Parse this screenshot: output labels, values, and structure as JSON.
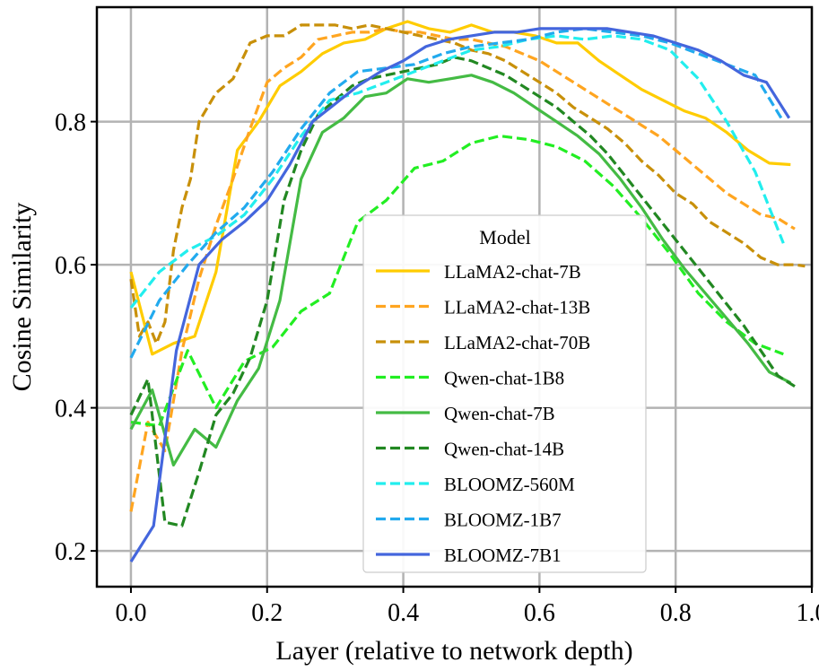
{
  "chart_data": {
    "type": "line",
    "title": "",
    "xlabel": "Layer (relative to network depth)",
    "ylabel": "Cosine Similarity",
    "xlim": [
      -0.05,
      1.0
    ],
    "ylim": [
      0.15,
      0.96
    ],
    "xticks": [
      0.0,
      0.2,
      0.4,
      0.6,
      0.8,
      1.0
    ],
    "xtick_labels": [
      "0.0",
      "0.2",
      "0.4",
      "0.6",
      "0.8",
      "1.0"
    ],
    "yticks": [
      0.2,
      0.4,
      0.6,
      0.8
    ],
    "ytick_labels": [
      "0.2",
      "0.4",
      "0.6",
      "0.8"
    ],
    "grid": true,
    "legend": {
      "title": "Model",
      "placement": "center-right"
    },
    "series": [
      {
        "name": "LLaMA2-chat-7B",
        "color": "#FFCC00",
        "dash": "solid",
        "x": [
          0,
          0.03125,
          0.0625,
          0.09375,
          0.125,
          0.15625,
          0.1875,
          0.21875,
          0.25,
          0.28125,
          0.3125,
          0.34375,
          0.375,
          0.40625,
          0.4375,
          0.46875,
          0.5,
          0.53125,
          0.5625,
          0.59375,
          0.625,
          0.65625,
          0.6875,
          0.71875,
          0.75,
          0.78125,
          0.8125,
          0.84375,
          0.875,
          0.90625,
          0.9375,
          0.96875
        ],
        "y": [
          0.59,
          0.475,
          0.49,
          0.5,
          0.59,
          0.76,
          0.8,
          0.85,
          0.87,
          0.895,
          0.91,
          0.915,
          0.93,
          0.94,
          0.93,
          0.925,
          0.935,
          0.925,
          0.925,
          0.92,
          0.91,
          0.91,
          0.885,
          0.865,
          0.845,
          0.83,
          0.815,
          0.805,
          0.785,
          0.76,
          0.742,
          0.74
        ]
      },
      {
        "name": "LLaMA2-chat-13B",
        "color": "#FFA520",
        "dash": "dashed",
        "x": [
          0,
          0.025,
          0.05,
          0.075,
          0.1,
          0.125,
          0.15,
          0.175,
          0.2,
          0.225,
          0.25,
          0.275,
          0.3,
          0.325,
          0.35,
          0.375,
          0.4,
          0.425,
          0.45,
          0.475,
          0.5,
          0.525,
          0.55,
          0.575,
          0.6,
          0.625,
          0.65,
          0.675,
          0.7,
          0.725,
          0.75,
          0.775,
          0.8,
          0.825,
          0.85,
          0.875,
          0.9,
          0.925,
          0.95,
          0.975
        ],
        "y": [
          0.255,
          0.38,
          0.34,
          0.48,
          0.58,
          0.655,
          0.72,
          0.79,
          0.855,
          0.875,
          0.89,
          0.915,
          0.92,
          0.925,
          0.925,
          0.93,
          0.925,
          0.925,
          0.92,
          0.915,
          0.915,
          0.91,
          0.905,
          0.895,
          0.885,
          0.87,
          0.855,
          0.84,
          0.825,
          0.81,
          0.795,
          0.78,
          0.76,
          0.74,
          0.72,
          0.7,
          0.685,
          0.67,
          0.665,
          0.65
        ]
      },
      {
        "name": "LLaMA2-chat-70B",
        "color": "#C8900A",
        "dash": "dashed",
        "x": [
          0,
          0.0125,
          0.025,
          0.0375,
          0.05,
          0.0625,
          0.075,
          0.0875,
          0.1,
          0.1125,
          0.125,
          0.15,
          0.175,
          0.2,
          0.225,
          0.25,
          0.275,
          0.3,
          0.325,
          0.35,
          0.375,
          0.4,
          0.425,
          0.45,
          0.475,
          0.5,
          0.525,
          0.55,
          0.575,
          0.6,
          0.625,
          0.65,
          0.675,
          0.7,
          0.725,
          0.75,
          0.775,
          0.8,
          0.825,
          0.85,
          0.875,
          0.9,
          0.925,
          0.95,
          0.975,
          0.99
        ],
        "y": [
          0.58,
          0.5,
          0.52,
          0.49,
          0.52,
          0.62,
          0.68,
          0.72,
          0.8,
          0.82,
          0.84,
          0.86,
          0.91,
          0.92,
          0.92,
          0.935,
          0.935,
          0.935,
          0.93,
          0.935,
          0.93,
          0.925,
          0.92,
          0.915,
          0.91,
          0.9,
          0.895,
          0.885,
          0.87,
          0.855,
          0.84,
          0.82,
          0.805,
          0.79,
          0.77,
          0.745,
          0.725,
          0.7,
          0.685,
          0.66,
          0.645,
          0.63,
          0.61,
          0.6,
          0.6,
          0.598
        ]
      },
      {
        "name": "Qwen-chat-1B8",
        "color": "#22EE22",
        "dash": "dashed",
        "x": [
          0,
          0.0417,
          0.0833,
          0.125,
          0.1667,
          0.2083,
          0.25,
          0.2917,
          0.3333,
          0.375,
          0.4167,
          0.4583,
          0.5,
          0.5417,
          0.5833,
          0.625,
          0.6667,
          0.7083,
          0.75,
          0.7917,
          0.8333,
          0.875,
          0.9167,
          0.9583
        ],
        "y": [
          0.38,
          0.375,
          0.48,
          0.4,
          0.465,
          0.485,
          0.535,
          0.56,
          0.66,
          0.69,
          0.735,
          0.745,
          0.77,
          0.78,
          0.775,
          0.765,
          0.745,
          0.71,
          0.665,
          0.615,
          0.56,
          0.52,
          0.49,
          0.475
        ]
      },
      {
        "name": "Qwen-chat-7B",
        "color": "#44BB44",
        "dash": "solid",
        "x": [
          0,
          0.03125,
          0.0625,
          0.09375,
          0.125,
          0.15625,
          0.1875,
          0.21875,
          0.25,
          0.28125,
          0.3125,
          0.34375,
          0.375,
          0.40625,
          0.4375,
          0.46875,
          0.5,
          0.53125,
          0.5625,
          0.59375,
          0.625,
          0.65625,
          0.6875,
          0.71875,
          0.75,
          0.78125,
          0.8125,
          0.84375,
          0.875,
          0.90625,
          0.9375,
          0.96875
        ],
        "y": [
          0.37,
          0.425,
          0.32,
          0.37,
          0.345,
          0.41,
          0.455,
          0.55,
          0.72,
          0.785,
          0.805,
          0.835,
          0.84,
          0.86,
          0.855,
          0.86,
          0.865,
          0.855,
          0.84,
          0.82,
          0.8,
          0.78,
          0.755,
          0.72,
          0.68,
          0.635,
          0.595,
          0.56,
          0.525,
          0.49,
          0.45,
          0.435
        ]
      },
      {
        "name": "Qwen-chat-14B",
        "color": "#228822",
        "dash": "dashed",
        "x": [
          0,
          0.025,
          0.05,
          0.075,
          0.1,
          0.125,
          0.15,
          0.175,
          0.2,
          0.225,
          0.25,
          0.275,
          0.3,
          0.325,
          0.35,
          0.375,
          0.4,
          0.425,
          0.45,
          0.475,
          0.5,
          0.525,
          0.55,
          0.575,
          0.6,
          0.625,
          0.65,
          0.675,
          0.7,
          0.725,
          0.75,
          0.775,
          0.8,
          0.825,
          0.85,
          0.875,
          0.9,
          0.925,
          0.95,
          0.975
        ],
        "y": [
          0.39,
          0.44,
          0.24,
          0.235,
          0.31,
          0.39,
          0.42,
          0.47,
          0.55,
          0.69,
          0.76,
          0.81,
          0.83,
          0.85,
          0.86,
          0.865,
          0.87,
          0.875,
          0.88,
          0.89,
          0.885,
          0.875,
          0.865,
          0.85,
          0.835,
          0.82,
          0.8,
          0.78,
          0.755,
          0.725,
          0.695,
          0.665,
          0.635,
          0.605,
          0.575,
          0.545,
          0.515,
          0.48,
          0.445,
          0.43
        ]
      },
      {
        "name": "BLOOMZ-560M",
        "color": "#22EEEE",
        "dash": "dashed",
        "x": [
          0,
          0.0417,
          0.0833,
          0.125,
          0.1667,
          0.2083,
          0.25,
          0.2917,
          0.3333,
          0.375,
          0.4167,
          0.4583,
          0.5,
          0.5417,
          0.5833,
          0.625,
          0.6667,
          0.7083,
          0.75,
          0.7917,
          0.8333,
          0.875,
          0.9167,
          0.9583
        ],
        "y": [
          0.54,
          0.59,
          0.62,
          0.64,
          0.67,
          0.72,
          0.78,
          0.83,
          0.84,
          0.855,
          0.87,
          0.885,
          0.9,
          0.905,
          0.915,
          0.92,
          0.915,
          0.92,
          0.915,
          0.9,
          0.86,
          0.8,
          0.73,
          0.63
        ]
      },
      {
        "name": "BLOOMZ-1B7",
        "color": "#22AAEE",
        "dash": "dashed",
        "x": [
          0,
          0.0417,
          0.0833,
          0.125,
          0.1667,
          0.2083,
          0.25,
          0.2917,
          0.3333,
          0.375,
          0.4167,
          0.4583,
          0.5,
          0.5417,
          0.5833,
          0.625,
          0.6667,
          0.7083,
          0.75,
          0.7917,
          0.8333,
          0.875,
          0.9167,
          0.9583
        ],
        "y": [
          0.47,
          0.55,
          0.6,
          0.645,
          0.68,
          0.73,
          0.79,
          0.84,
          0.87,
          0.875,
          0.88,
          0.895,
          0.905,
          0.91,
          0.915,
          0.925,
          0.93,
          0.925,
          0.92,
          0.91,
          0.895,
          0.88,
          0.865,
          0.8
        ]
      },
      {
        "name": "BLOOMZ-7B1",
        "color": "#4466DD",
        "dash": "solid",
        "x": [
          0,
          0.0333,
          0.0667,
          0.1,
          0.1333,
          0.1667,
          0.2,
          0.2333,
          0.2667,
          0.3,
          0.3333,
          0.3667,
          0.4,
          0.4333,
          0.4667,
          0.5,
          0.5333,
          0.5667,
          0.6,
          0.6333,
          0.6667,
          0.7,
          0.7333,
          0.7667,
          0.8,
          0.8333,
          0.8667,
          0.9,
          0.9333,
          0.9667
        ],
        "y": [
          0.185,
          0.235,
          0.48,
          0.6,
          0.635,
          0.66,
          0.69,
          0.74,
          0.8,
          0.825,
          0.85,
          0.87,
          0.885,
          0.905,
          0.915,
          0.92,
          0.925,
          0.925,
          0.93,
          0.93,
          0.93,
          0.93,
          0.925,
          0.92,
          0.91,
          0.9,
          0.885,
          0.865,
          0.855,
          0.805
        ]
      }
    ]
  }
}
